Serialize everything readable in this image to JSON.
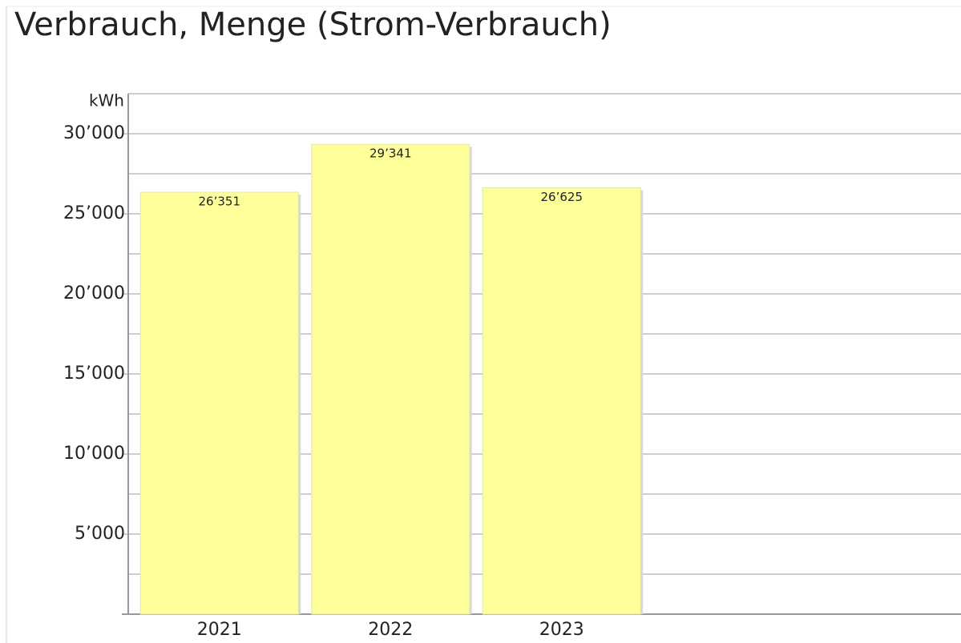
{
  "chart_data": {
    "type": "bar",
    "title": "Verbrauch, Menge (Strom-Verbrauch)",
    "y_label": "kWh",
    "categories": [
      "2021",
      "2022",
      "2023"
    ],
    "values": [
      26351,
      29341,
      26625
    ],
    "value_labels": [
      "26’351",
      "29’341",
      "26’625"
    ],
    "color": "#ffff99",
    "ylim": [
      0,
      32500
    ],
    "yticks": [
      {
        "value": 5000,
        "label": "5’000"
      },
      {
        "value": 10000,
        "label": "10’000"
      },
      {
        "value": 15000,
        "label": "15’000"
      },
      {
        "value": 20000,
        "label": "20’000"
      },
      {
        "value": 25000,
        "label": "25’000"
      },
      {
        "value": 30000,
        "label": "30’000"
      }
    ],
    "yticks_minor": [
      2500,
      7500,
      12500,
      17500,
      22500,
      27500,
      32500
    ],
    "grid": true
  }
}
